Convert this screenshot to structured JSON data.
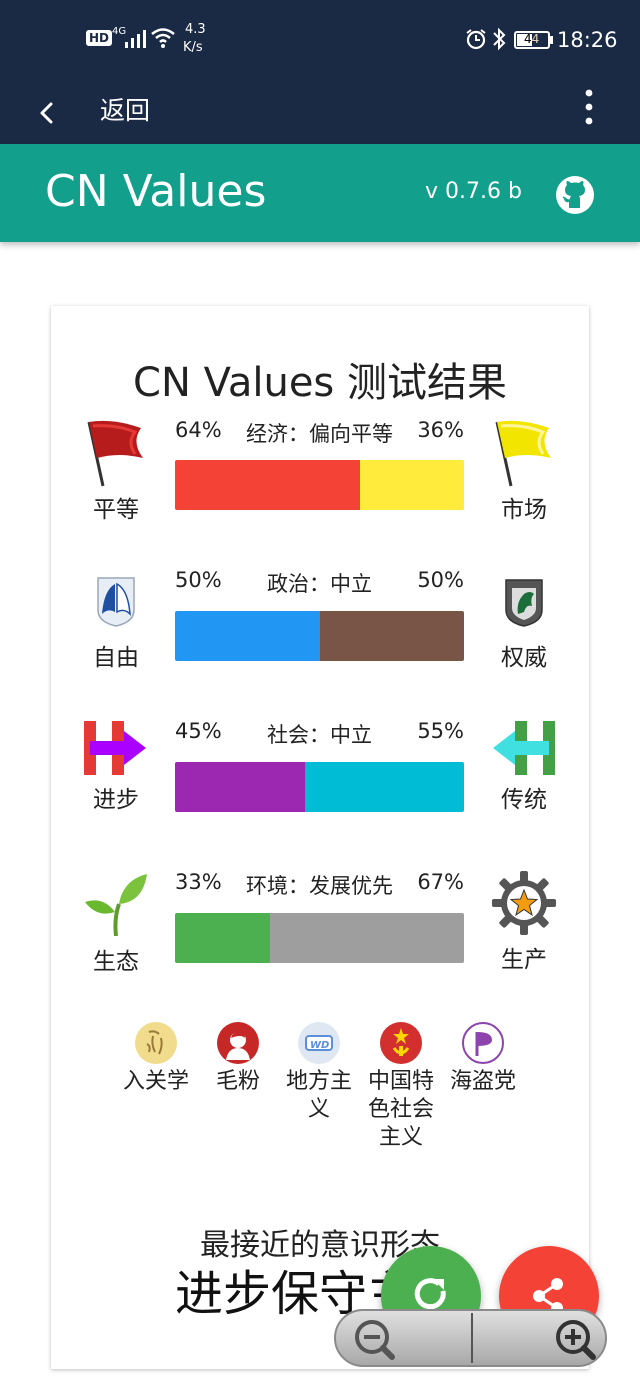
{
  "status": {
    "hd": "HD",
    "network": "4G",
    "speed_value": "4.3",
    "speed_unit": "K/s",
    "battery": "44",
    "time": "18:26"
  },
  "nav": {
    "back_label": "返回"
  },
  "app": {
    "title": "CN Values",
    "version": "v 0.7.6 b"
  },
  "card": {
    "title": "CN Values 测试结果",
    "axes": [
      {
        "left_pct": "64%",
        "label": "经济：偏向平等",
        "right_pct": "36%",
        "left_name": "平等",
        "right_name": "市场",
        "left_value": 64,
        "right_value": 36,
        "left_color": "#f44336",
        "right_color": "#ffeb3b",
        "left_icon": "red-flag-icon",
        "right_icon": "yellow-flag-icon"
      },
      {
        "left_pct": "50%",
        "label": "政治：中立",
        "right_pct": "50%",
        "left_name": "自由",
        "right_name": "权威",
        "left_value": 50,
        "right_value": 50,
        "left_color": "#2196f3",
        "right_color": "#795548",
        "left_icon": "wings-emblem-icon",
        "right_icon": "horse-emblem-icon"
      },
      {
        "left_pct": "45%",
        "label": "社会：中立",
        "right_pct": "55%",
        "left_name": "进步",
        "right_name": "传统",
        "left_value": 45,
        "right_value": 55,
        "left_color": "#9c27b0",
        "right_color": "#00bcd4",
        "left_icon": "h-arrow-right-icon",
        "right_icon": "h-arrow-left-icon"
      },
      {
        "left_pct": "33%",
        "label": "环境：发展优先",
        "right_pct": "67%",
        "left_name": "生态",
        "right_name": "生产",
        "left_value": 33,
        "right_value": 67,
        "left_color": "#4caf50",
        "right_color": "#9e9e9e",
        "left_icon": "sprout-icon",
        "right_icon": "gear-star-icon"
      }
    ],
    "ideologies": [
      {
        "name": "入关学",
        "icon": "calligraphy-badge-icon"
      },
      {
        "name": "毛粉",
        "icon": "portrait-badge-icon"
      },
      {
        "name": "地方主义",
        "icon": "regional-badge-icon"
      },
      {
        "name": "中国特色社会主义",
        "icon": "emblem-badge-icon"
      },
      {
        "name": "海盗党",
        "icon": "pirate-party-icon"
      }
    ],
    "closest_label": "最接近的意识形态",
    "closest_value": "进步保守主"
  }
}
